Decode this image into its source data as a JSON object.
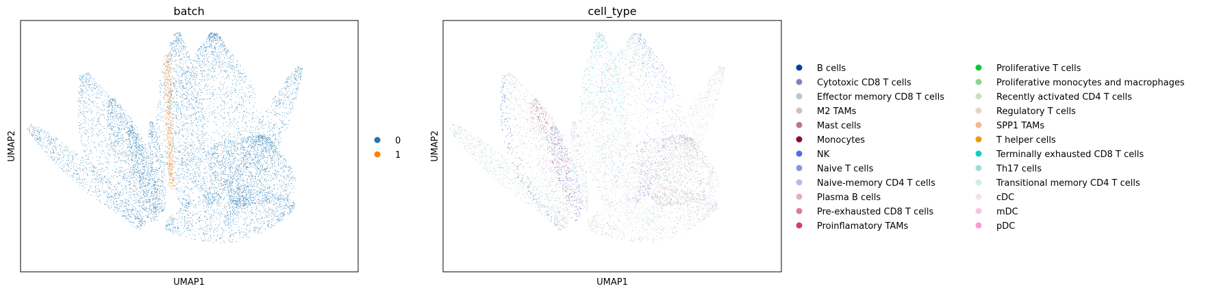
{
  "chart_data": [
    {
      "type": "scatter",
      "title": "batch",
      "xlabel": "UMAP1",
      "ylabel": "UMAP2",
      "grid": false,
      "ticks_shown": false,
      "legend_placement": "right",
      "series": [
        {
          "name": "0",
          "color": "#1f77b4"
        },
        {
          "name": "1",
          "color": "#ff7f0e"
        }
      ]
    },
    {
      "type": "scatter",
      "title": "cell_type",
      "xlabel": "UMAP1",
      "ylabel": "UMAP2",
      "grid": false,
      "ticks_shown": false,
      "legend_placement": "right",
      "series": [
        {
          "name": "B cells",
          "color": "#023fa5"
        },
        {
          "name": "Cytotoxic CD8 T cells",
          "color": "#7d87b9"
        },
        {
          "name": "Effector memory CD8 T cells",
          "color": "#bec1d4"
        },
        {
          "name": "M2 TAMs",
          "color": "#d6bcc0"
        },
        {
          "name": "Mast cells",
          "color": "#bb7784"
        },
        {
          "name": "Monocytes",
          "color": "#8e063b"
        },
        {
          "name": "NK",
          "color": "#4a6fe3"
        },
        {
          "name": "Naive T cells",
          "color": "#8595e1"
        },
        {
          "name": "Naive-memory CD4 T cells",
          "color": "#b5bbe3"
        },
        {
          "name": "Plasma B cells",
          "color": "#e6afb9"
        },
        {
          "name": "Pre-exhausted CD8 T cells",
          "color": "#e07b91"
        },
        {
          "name": "Proinflamatory TAMs",
          "color": "#d33f6a"
        },
        {
          "name": "Proliferative T cells",
          "color": "#11c638"
        },
        {
          "name": "Proliferative monocytes and macrophages",
          "color": "#8dd593"
        },
        {
          "name": "Recently activated CD4 T cells",
          "color": "#c6dec7"
        },
        {
          "name": "Regulatory T cells",
          "color": "#ead3c6"
        },
        {
          "name": "SPP1 TAMs",
          "color": "#f0b98d"
        },
        {
          "name": "T helper cells",
          "color": "#ef9708"
        },
        {
          "name": "Terminally exhausted CD8 T cells",
          "color": "#0fcfc0"
        },
        {
          "name": "Th17 cells",
          "color": "#9cded6"
        },
        {
          "name": "Transitional memory CD4 T cells",
          "color": "#d5eae7"
        },
        {
          "name": "cDC",
          "color": "#f3e1eb"
        },
        {
          "name": "mDC",
          "color": "#f6c4e1"
        },
        {
          "name": "pDC",
          "color": "#f79cd4"
        }
      ]
    }
  ]
}
